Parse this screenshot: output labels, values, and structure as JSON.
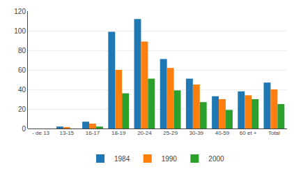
{
  "chart_data": {
    "type": "bar",
    "categories": [
      "- de 13",
      "13-15",
      "16-17",
      "18-19",
      "20-24",
      "25-29",
      "30-39",
      "40-59",
      "60 et +",
      "Total"
    ],
    "series": [
      {
        "name": "1984",
        "values": [
          0,
          2,
          7,
          99,
          112,
          71,
          51,
          33,
          38,
          47
        ]
      },
      {
        "name": "1990",
        "values": [
          0,
          1,
          5,
          60,
          89,
          62,
          45,
          30,
          34,
          40
        ]
      },
      {
        "name": "2000",
        "values": [
          0,
          0,
          2,
          36,
          51,
          39,
          27,
          19,
          30,
          25
        ]
      }
    ],
    "ylim": [
      0,
      120
    ],
    "yticks": [
      0,
      20,
      40,
      60,
      80,
      100,
      120
    ],
    "grid": true,
    "legend": "bottom"
  }
}
